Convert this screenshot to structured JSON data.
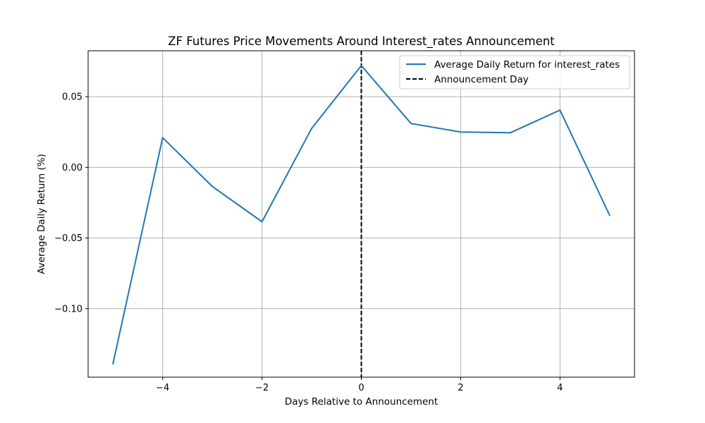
{
  "chart_data": {
    "type": "line",
    "title": "ZF Futures Price Movements Around Interest_rates Announcement",
    "xlabel": "Days Relative to Announcement",
    "ylabel": "Average Daily Return (%)",
    "xlim": [
      -5.5,
      5.5
    ],
    "ylim": [
      -0.1485,
      0.0825
    ],
    "x_ticks": [
      -4,
      -2,
      0,
      2,
      4
    ],
    "x_tick_labels": [
      "−4",
      "−2",
      "0",
      "2",
      "4"
    ],
    "y_ticks": [
      -0.1,
      -0.05,
      0.0,
      0.05
    ],
    "y_tick_labels": [
      "−0.10",
      "−0.05",
      "0.00",
      "0.05"
    ],
    "grid": true,
    "legend_position": "top-right",
    "series": [
      {
        "name": "Average Daily Return for interest_rates",
        "color": "#1f77b4",
        "style": "solid",
        "x": [
          -5,
          -4,
          -3,
          -2,
          -1,
          0,
          1,
          2,
          3,
          4,
          5
        ],
        "y": [
          -0.139,
          0.021,
          -0.0135,
          -0.0385,
          0.0275,
          0.072,
          0.031,
          0.025,
          0.0245,
          0.0405,
          -0.034
        ]
      }
    ],
    "vline": {
      "name": "Announcement Day",
      "x": 0,
      "color": "#000000",
      "style": "dashed"
    }
  }
}
